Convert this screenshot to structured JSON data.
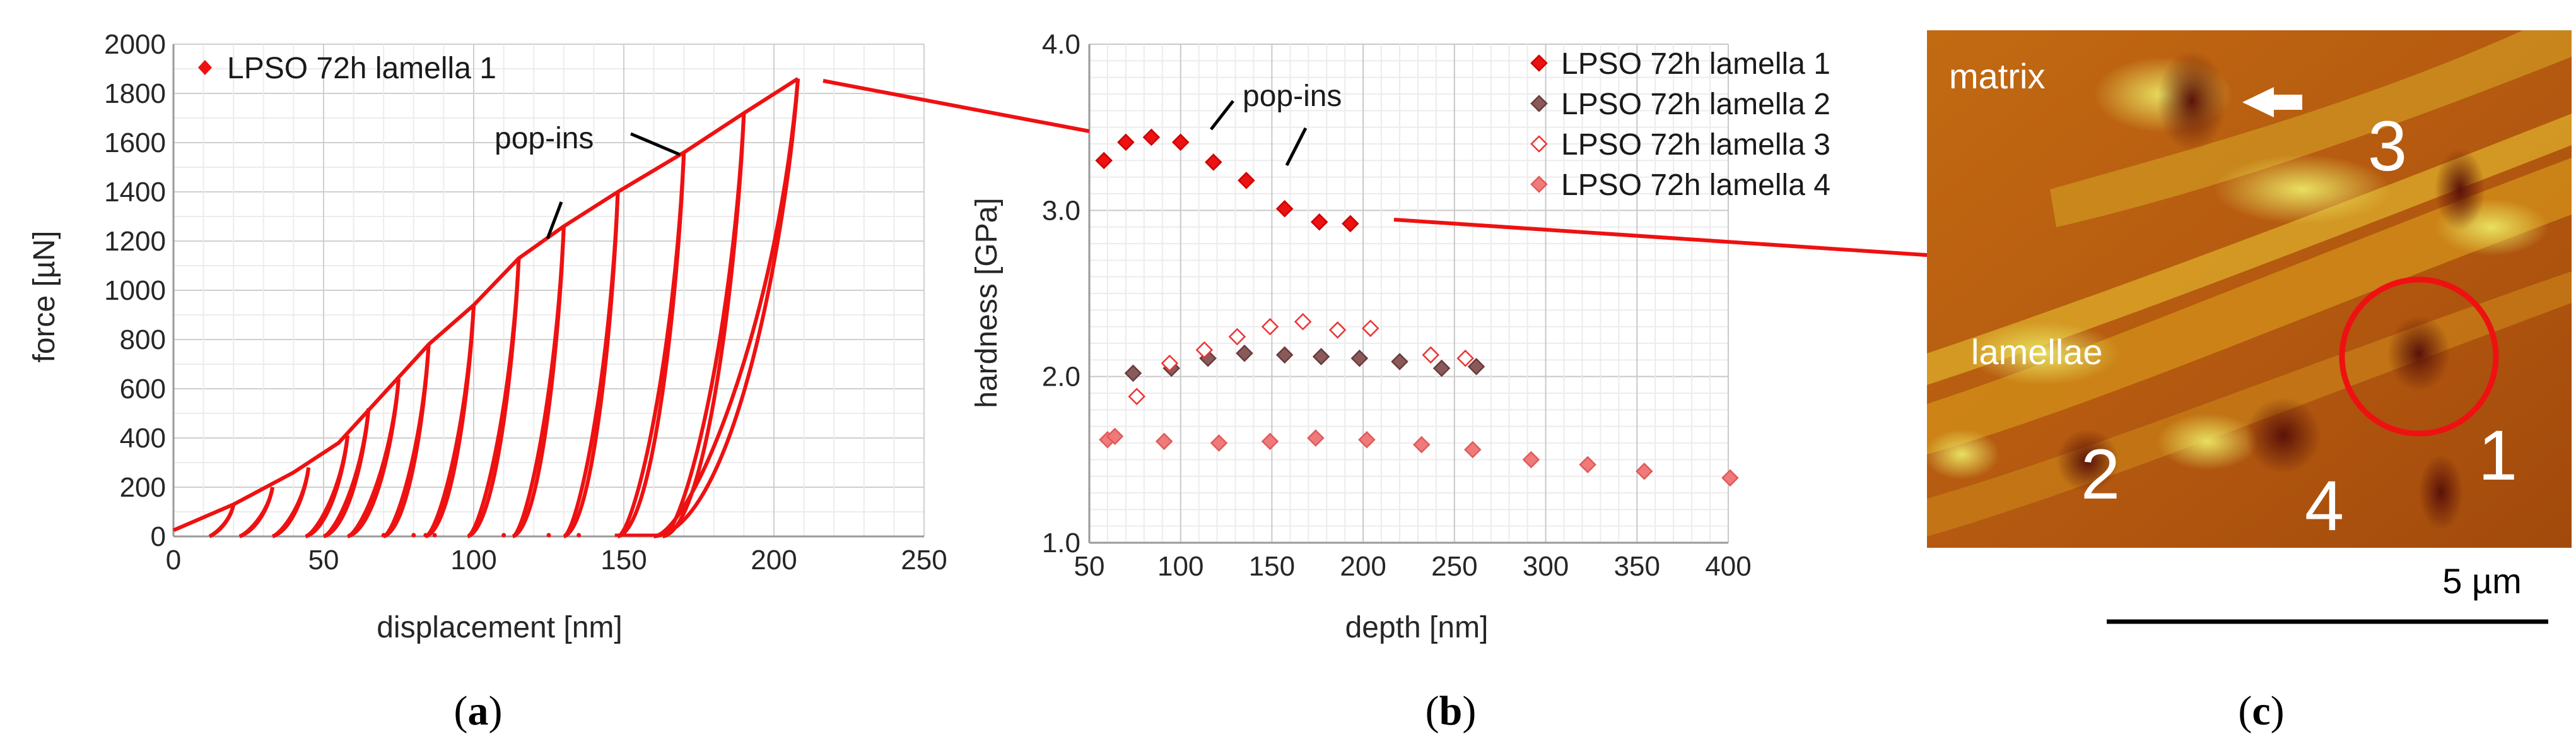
{
  "chart_data": [
    {
      "type": "line",
      "panel_label": "a",
      "xlabel": "displacement [nm]",
      "ylabel": "force [µN]",
      "xlim": [
        0,
        250
      ],
      "ylim": [
        0,
        2000
      ],
      "xticks": [
        0,
        50,
        100,
        150,
        200,
        250
      ],
      "yticks": [
        0,
        200,
        400,
        600,
        800,
        1000,
        1200,
        1400,
        1600,
        1800,
        2000
      ],
      "grid": true,
      "legend": "top-left",
      "annotation": "pop-ins",
      "series": [
        {
          "name": "LPSO 72h lamella 1",
          "color": "#ee1111",
          "loading_envelope": [
            [
              0,
              25
            ],
            [
              20,
              130
            ],
            [
              40,
              260
            ],
            [
              55,
              380
            ],
            [
              70,
              580
            ],
            [
              85,
              780
            ],
            [
              100,
              940
            ],
            [
              115,
              1130
            ],
            [
              130,
              1260
            ],
            [
              148,
              1400
            ],
            [
              170,
              1560
            ],
            [
              190,
              1720
            ],
            [
              208,
              1860
            ]
          ],
          "cycles": [
            {
              "peak": [
                20,
                130
              ],
              "unload_end": 12
            },
            {
              "peak": [
                33,
                200
              ],
              "unload_end": 22
            },
            {
              "peak": [
                45,
                280
              ],
              "unload_end": 33
            },
            {
              "peak": [
                58,
                410
              ],
              "unload_end": 44
            },
            {
              "peak": [
                65,
                520
              ],
              "unload_end": 50
            },
            {
              "peak": [
                75,
                640
              ],
              "unload_end": 58
            },
            {
              "peak": [
                85,
                780
              ],
              "unload_end": 70
            },
            {
              "peak": [
                100,
                940
              ],
              "unload_end": 84
            },
            {
              "peak": [
                115,
                1130
              ],
              "unload_end": 98
            },
            {
              "peak": [
                130,
                1260
              ],
              "unload_end": 113
            },
            {
              "peak": [
                148,
                1400
              ],
              "unload_end": 130
            },
            {
              "peak": [
                170,
                1560
              ],
              "unload_end": 148
            },
            {
              "peak": [
                190,
                1720
              ],
              "unload_end": 163
            },
            {
              "peak": [
                208,
                1860
              ],
              "unload_end": 160
            }
          ]
        }
      ]
    },
    {
      "type": "scatter",
      "panel_label": "b",
      "xlabel": "depth [nm]",
      "ylabel": "hardness [GPa]",
      "xlim": [
        50,
        400
      ],
      "ylim": [
        1.0,
        4.0
      ],
      "xticks": [
        50,
        100,
        150,
        200,
        250,
        300,
        350,
        400
      ],
      "yticks": [
        "1.0",
        "2.0",
        "3.0",
        "4.0"
      ],
      "grid": true,
      "legend": "top-right",
      "annotation": "pop-ins",
      "series": [
        {
          "name": "LPSO 72h lamella 1",
          "marker": "filled-red",
          "x": [
            58,
            70,
            84,
            100,
            118,
            136,
            157,
            176,
            193
          ],
          "y": [
            3.3,
            3.41,
            3.44,
            3.41,
            3.29,
            3.18,
            3.01,
            2.93,
            2.92
          ]
        },
        {
          "name": "LPSO 72h lamella 2",
          "marker": "filled-gray",
          "x": [
            74,
            95,
            115,
            135,
            157,
            177,
            198,
            220,
            243,
            262
          ],
          "y": [
            2.02,
            2.05,
            2.11,
            2.14,
            2.13,
            2.12,
            2.11,
            2.09,
            2.05,
            2.06
          ]
        },
        {
          "name": "LPSO 72h lamella 3",
          "marker": "open-red",
          "x": [
            76,
            94,
            113,
            131,
            149,
            167,
            186,
            204,
            237,
            256
          ],
          "y": [
            1.88,
            2.08,
            2.16,
            2.24,
            2.3,
            2.33,
            2.28,
            2.29,
            2.13,
            2.11
          ]
        },
        {
          "name": "LPSO 72h lamella 4",
          "marker": "filled-pink",
          "x": [
            60,
            64,
            91,
            121,
            149,
            174,
            202,
            232,
            260,
            292,
            323,
            354,
            401
          ],
          "y": [
            1.62,
            1.64,
            1.61,
            1.6,
            1.61,
            1.63,
            1.62,
            1.59,
            1.56,
            1.5,
            1.47,
            1.43,
            1.39
          ]
        }
      ]
    }
  ],
  "afm": {
    "panel_label": "c",
    "labels": {
      "matrix": "matrix",
      "lamellae": "lamellae"
    },
    "numbers": [
      "1",
      "2",
      "3",
      "4"
    ],
    "scale_text": "5 µm"
  },
  "colors": {
    "curve": "#ee1111",
    "gray_marker": "#8a5a5a",
    "pink_marker": "#f07a7a"
  }
}
